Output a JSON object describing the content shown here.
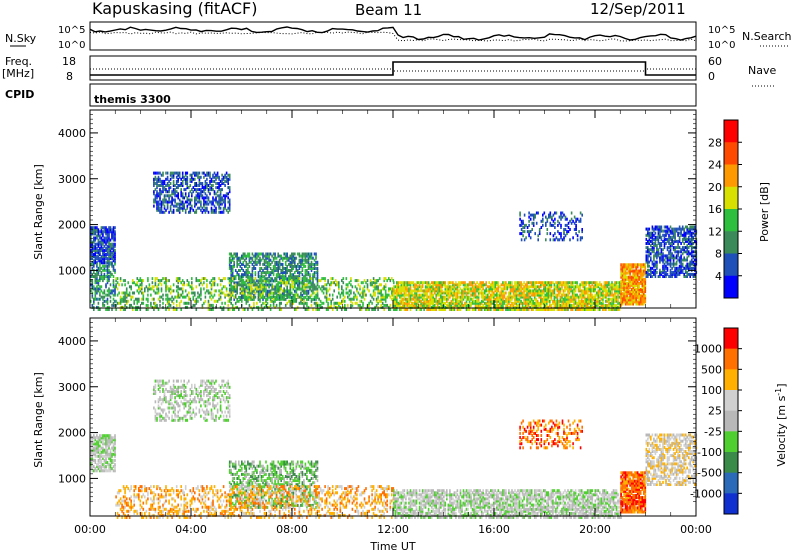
{
  "header": {
    "station": "Kapuskasing (fitACF)",
    "beam": "Beam 11",
    "date": "12/Sep/2011"
  },
  "side_labels": {
    "nsky": "N.Sky",
    "nsearch": "N.Search",
    "freq": "Freq.",
    "freq_unit": "[MHz]",
    "nave": "Nave",
    "cpid": "CPID"
  },
  "cpid_value": "themis 3300",
  "nsky_axis": {
    "ticks": [
      "10^5",
      "10^0"
    ]
  },
  "nsearch_axis": {
    "ticks": [
      "10^5",
      "10^0"
    ]
  },
  "freq_axis": {
    "ticks": [
      "18",
      "8"
    ]
  },
  "nave_axis": {
    "ticks": [
      "60",
      "0"
    ]
  },
  "chart_data": [
    {
      "type": "heatmap",
      "name": "power",
      "ylabel": "Slant Range [km]",
      "ylim": [
        180,
        4500
      ],
      "yticks": [
        1000,
        2000,
        3000,
        4000
      ],
      "xlim": [
        0,
        24
      ],
      "colorbar": {
        "label": "Power [dB]",
        "ticks": [
          4,
          8,
          12,
          16,
          20,
          24,
          28
        ],
        "colors": [
          "#0000ff",
          "#1f4fb8",
          "#3a8a5a",
          "#2fbf3f",
          "#d8e000",
          "#ff9900",
          "#ff4a00",
          "#ff0000"
        ]
      },
      "regions": [
        {
          "t0": 0.0,
          "t1": 1.0,
          "r0": 1200,
          "r1": 2000,
          "level": 1,
          "density": 0.8
        },
        {
          "t0": 0.0,
          "t1": 1.0,
          "r0": 180,
          "r1": 1200,
          "level": 2,
          "density": 0.5
        },
        {
          "t0": 2.5,
          "t1": 5.5,
          "r0": 2300,
          "r1": 3200,
          "level": 1,
          "density": 0.5
        },
        {
          "t0": 5.5,
          "t1": 9.0,
          "r0": 400,
          "r1": 1400,
          "level": 2,
          "density": 0.6
        },
        {
          "t0": 1.0,
          "t1": 12.0,
          "r0": 180,
          "r1": 900,
          "level": 3,
          "density": 0.35
        },
        {
          "t0": 12.0,
          "t1": 21.0,
          "r0": 180,
          "r1": 800,
          "level": 4,
          "density": 0.8
        },
        {
          "t0": 17.0,
          "t1": 19.5,
          "r0": 1700,
          "r1": 2300,
          "level": 1,
          "density": 0.3
        },
        {
          "t0": 21.0,
          "t1": 22.0,
          "r0": 300,
          "r1": 1200,
          "level": 5,
          "density": 0.9
        },
        {
          "t0": 22.0,
          "t1": 24.0,
          "r0": 900,
          "r1": 2000,
          "level": 1,
          "density": 0.6
        }
      ]
    },
    {
      "type": "heatmap",
      "name": "velocity",
      "ylabel": "Slant Range [km]",
      "xlabel": "Time UT",
      "ylim": [
        180,
        4500
      ],
      "yticks": [
        1000,
        2000,
        3000,
        4000
      ],
      "xlim": [
        0,
        24
      ],
      "xticks": [
        "00:00",
        "04:00",
        "08:00",
        "12:00",
        "16:00",
        "20:00",
        "00:00"
      ],
      "colorbar": {
        "label": "Velocity [m s^-1]",
        "ticks": [
          1000,
          500,
          100,
          25,
          -25,
          -100,
          -500,
          -1000
        ],
        "colors": [
          "#1030d0",
          "#2a6ab8",
          "#3a8a4a",
          "#50d030",
          "#b8b8b8",
          "#d0d0d0",
          "#ffb000",
          "#ff7000",
          "#ff0000"
        ]
      },
      "regions": [
        {
          "t0": 0.0,
          "t1": 1.0,
          "r0": 1200,
          "r1": 2000,
          "level": 4,
          "density": 0.8
        },
        {
          "t0": 2.5,
          "t1": 5.5,
          "r0": 2300,
          "r1": 3200,
          "level": 4,
          "density": 0.4
        },
        {
          "t0": 5.5,
          "t1": 9.0,
          "r0": 400,
          "r1": 1400,
          "level": 3,
          "density": 0.5
        },
        {
          "t0": 1.0,
          "t1": 12.0,
          "r0": 180,
          "r1": 900,
          "level": 6,
          "density": 0.35
        },
        {
          "t0": 12.0,
          "t1": 21.0,
          "r0": 180,
          "r1": 800,
          "level": 4,
          "density": 0.7
        },
        {
          "t0": 17.0,
          "t1": 19.5,
          "r0": 1700,
          "r1": 2300,
          "level": 7,
          "density": 0.3
        },
        {
          "t0": 21.0,
          "t1": 22.0,
          "r0": 300,
          "r1": 1200,
          "level": 7,
          "density": 0.9
        },
        {
          "t0": 22.0,
          "t1": 24.0,
          "r0": 900,
          "r1": 2000,
          "level": 5,
          "density": 0.6
        }
      ]
    }
  ]
}
